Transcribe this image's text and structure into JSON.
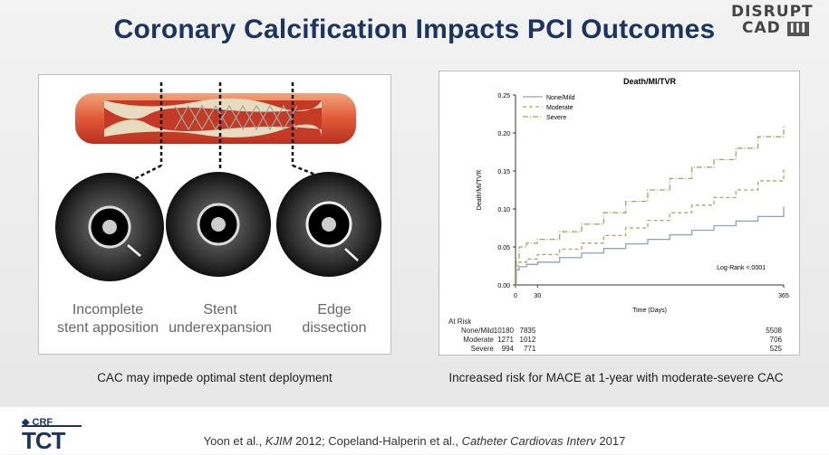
{
  "slide": {
    "title": "Coronary Calcification Impacts PCI Outcomes",
    "logo_line1": "DISRUPT",
    "logo_line2": "CAD",
    "logo_num": "III"
  },
  "left": {
    "labels": [
      {
        "line1": "Incomplete",
        "line2": "stent apposition"
      },
      {
        "line1": "Stent",
        "line2": "underexpansion"
      },
      {
        "line1": "Edge",
        "line2": "dissection"
      }
    ],
    "caption": "CAC may impede optimal stent deployment"
  },
  "right": {
    "caption": "Increased risk for MACE at 1-year with moderate-severe CAC",
    "annotation": "Log-Rank <.0001",
    "at_risk": {
      "header": "At Risk",
      "rows": [
        {
          "group": "None/Mild",
          "values": [
            "10180",
            "7835",
            "5508"
          ]
        },
        {
          "group": "Moderate",
          "values": [
            "1271",
            "1012",
            "706"
          ]
        },
        {
          "group": "Severe",
          "values": [
            "994",
            "771",
            "525"
          ]
        }
      ]
    }
  },
  "footer": {
    "crf": "CRF",
    "tct": "TCT",
    "citation_prefix": "Yoon et al., ",
    "citation_journal1": "KJIM",
    "citation_mid": " 2012; Copeland-Halperin et al., ",
    "citation_journal2": "Catheter Cardiovas Interv",
    "citation_year": " 2017"
  },
  "colors": {
    "title": "#1c3560",
    "none_mild": "#8fa3b5",
    "moderate": "#b5a06a",
    "severe": "#9aa86a"
  },
  "chart_data": {
    "type": "line",
    "title": "Death/MI/TVR",
    "xlabel": "Time (Days)",
    "ylabel": "Death/MI/TVR",
    "xlim": [
      0,
      365
    ],
    "ylim": [
      0,
      0.25
    ],
    "x_ticks": [
      0,
      30,
      365
    ],
    "y_ticks": [
      "0.00",
      "0.05",
      "0.10",
      "0.15",
      "0.20",
      "0.25"
    ],
    "legend_position": "top-left",
    "series": [
      {
        "name": "None/Mild",
        "style": "solid",
        "x": [
          0,
          1,
          5,
          15,
          30,
          60,
          90,
          120,
          150,
          180,
          210,
          240,
          270,
          300,
          330,
          365
        ],
        "y": [
          0.0,
          0.02,
          0.024,
          0.027,
          0.03,
          0.036,
          0.042,
          0.048,
          0.054,
          0.06,
          0.066,
          0.072,
          0.078,
          0.084,
          0.09,
          0.103
        ]
      },
      {
        "name": "Moderate",
        "style": "dashed",
        "x": [
          0,
          1,
          5,
          15,
          30,
          60,
          90,
          120,
          150,
          180,
          210,
          240,
          270,
          300,
          330,
          365
        ],
        "y": [
          0.0,
          0.025,
          0.03,
          0.034,
          0.04,
          0.047,
          0.055,
          0.065,
          0.075,
          0.085,
          0.095,
          0.105,
          0.115,
          0.125,
          0.137,
          0.152
        ]
      },
      {
        "name": "Severe",
        "style": "dashdot",
        "x": [
          0,
          1,
          5,
          15,
          30,
          60,
          90,
          120,
          150,
          180,
          210,
          240,
          270,
          300,
          330,
          365
        ],
        "y": [
          0.0,
          0.035,
          0.05,
          0.055,
          0.06,
          0.07,
          0.08,
          0.095,
          0.11,
          0.125,
          0.14,
          0.155,
          0.165,
          0.18,
          0.195,
          0.21
        ]
      }
    ]
  }
}
